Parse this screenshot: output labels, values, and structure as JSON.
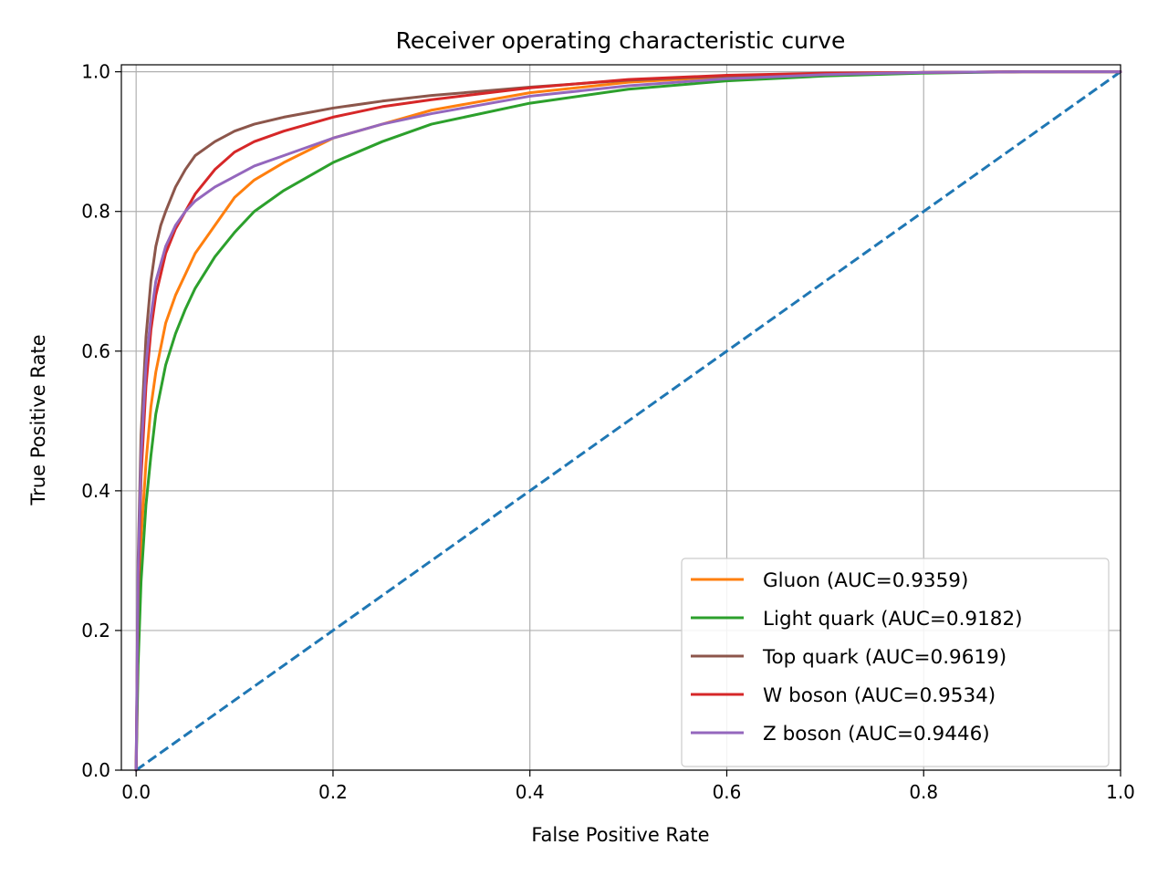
{
  "chart_data": {
    "type": "line",
    "title": "Receiver operating characteristic curve",
    "xlabel": "False Positive Rate",
    "ylabel": "True Positive Rate",
    "xlim": [
      -0.015,
      1.0
    ],
    "ylim": [
      0.0,
      1.01
    ],
    "xticks": [
      "0.0",
      "0.2",
      "0.4",
      "0.6",
      "0.8",
      "1.0"
    ],
    "yticks": [
      "0.0",
      "0.2",
      "0.4",
      "0.6",
      "0.8",
      "1.0"
    ],
    "grid": true,
    "legend_position": "bottom-right",
    "reference_line": {
      "style": "dashed",
      "color": "#1f77b4",
      "x": [
        0,
        1
      ],
      "y": [
        0,
        1
      ]
    },
    "series": [
      {
        "name": "Gluon (AUC=0.9359)",
        "color": "#ff7f0e",
        "x": [
          0,
          0.002,
          0.005,
          0.01,
          0.015,
          0.02,
          0.03,
          0.04,
          0.05,
          0.06,
          0.08,
          0.1,
          0.12,
          0.15,
          0.2,
          0.25,
          0.3,
          0.4,
          0.5,
          0.6,
          0.7,
          0.8,
          0.9,
          1.0
        ],
        "y": [
          0,
          0.2,
          0.33,
          0.44,
          0.52,
          0.57,
          0.64,
          0.68,
          0.71,
          0.74,
          0.78,
          0.82,
          0.845,
          0.87,
          0.905,
          0.925,
          0.945,
          0.97,
          0.985,
          0.993,
          0.997,
          0.999,
          1.0,
          1.0
        ]
      },
      {
        "name": "Light quark (AUC=0.9182)",
        "color": "#2ca02c",
        "x": [
          0,
          0.002,
          0.005,
          0.01,
          0.015,
          0.02,
          0.03,
          0.04,
          0.05,
          0.06,
          0.08,
          0.1,
          0.12,
          0.15,
          0.2,
          0.25,
          0.3,
          0.4,
          0.5,
          0.6,
          0.7,
          0.8,
          0.9,
          1.0
        ],
        "y": [
          0,
          0.15,
          0.27,
          0.38,
          0.45,
          0.51,
          0.58,
          0.625,
          0.66,
          0.69,
          0.735,
          0.77,
          0.8,
          0.83,
          0.87,
          0.9,
          0.925,
          0.955,
          0.975,
          0.987,
          0.994,
          0.998,
          1.0,
          1.0
        ]
      },
      {
        "name": "Top quark (AUC=0.9619)",
        "color": "#8c564b",
        "x": [
          0,
          0.002,
          0.005,
          0.01,
          0.015,
          0.02,
          0.025,
          0.03,
          0.04,
          0.05,
          0.06,
          0.08,
          0.1,
          0.12,
          0.15,
          0.2,
          0.25,
          0.3,
          0.4,
          0.5,
          0.6,
          0.7,
          0.8,
          0.9,
          1.0
        ],
        "y": [
          0,
          0.3,
          0.48,
          0.62,
          0.7,
          0.75,
          0.78,
          0.8,
          0.835,
          0.86,
          0.88,
          0.9,
          0.915,
          0.925,
          0.935,
          0.948,
          0.958,
          0.966,
          0.978,
          0.988,
          0.994,
          0.997,
          0.999,
          1.0,
          1.0
        ]
      },
      {
        "name": "W boson (AUC=0.9534)",
        "color": "#d62728",
        "x": [
          0,
          0.002,
          0.005,
          0.01,
          0.015,
          0.02,
          0.03,
          0.04,
          0.05,
          0.06,
          0.08,
          0.1,
          0.12,
          0.15,
          0.2,
          0.25,
          0.3,
          0.4,
          0.5,
          0.6,
          0.7,
          0.8,
          0.9,
          1.0
        ],
        "y": [
          0,
          0.25,
          0.42,
          0.55,
          0.63,
          0.68,
          0.74,
          0.775,
          0.8,
          0.825,
          0.86,
          0.885,
          0.9,
          0.915,
          0.935,
          0.95,
          0.96,
          0.977,
          0.989,
          0.995,
          0.998,
          0.999,
          1.0,
          1.0
        ]
      },
      {
        "name": "Z boson (AUC=0.9446)",
        "color": "#9467bd",
        "x": [
          0,
          0.002,
          0.005,
          0.01,
          0.015,
          0.02,
          0.03,
          0.04,
          0.05,
          0.06,
          0.08,
          0.1,
          0.12,
          0.15,
          0.2,
          0.25,
          0.3,
          0.4,
          0.5,
          0.6,
          0.7,
          0.8,
          0.9,
          1.0
        ],
        "y": [
          0,
          0.28,
          0.45,
          0.58,
          0.65,
          0.7,
          0.75,
          0.78,
          0.8,
          0.815,
          0.835,
          0.85,
          0.865,
          0.88,
          0.905,
          0.925,
          0.94,
          0.965,
          0.98,
          0.99,
          0.996,
          0.999,
          1.0,
          1.0
        ]
      }
    ]
  }
}
